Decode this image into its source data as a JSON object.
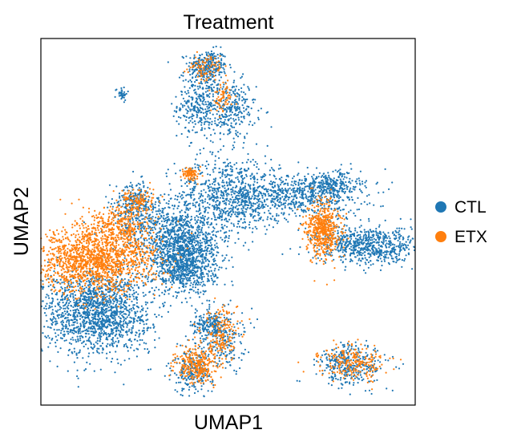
{
  "chart_data": {
    "type": "scatter",
    "title": "Treatment",
    "xlabel": "UMAP1",
    "ylabel": "UMAP2",
    "xlim": [
      0,
      100
    ],
    "ylim": [
      0,
      100
    ],
    "xticks": [],
    "yticks": [],
    "grid": false,
    "legend_position": "right",
    "series": [
      {
        "name": "CTL",
        "color": "#1f77b4",
        "clusters": [
          {
            "cx": 44.5,
            "cy": 92.5,
            "sx": 2.6,
            "sy": 2.2,
            "n": 260
          },
          {
            "cx": 42.5,
            "cy": 82.0,
            "sx": 3.0,
            "sy": 4.5,
            "n": 320
          },
          {
            "cx": 51.0,
            "cy": 80.5,
            "sx": 3.2,
            "sy": 4.0,
            "n": 260
          },
          {
            "cx": 21.5,
            "cy": 85.0,
            "sx": 0.8,
            "sy": 0.9,
            "n": 35
          },
          {
            "cx": 50.0,
            "cy": 57.0,
            "sx": 7.0,
            "sy": 5.5,
            "n": 780
          },
          {
            "cx": 68.0,
            "cy": 57.0,
            "sx": 9.0,
            "sy": 3.2,
            "n": 620
          },
          {
            "cx": 77.5,
            "cy": 60.0,
            "sx": 4.0,
            "sy": 2.0,
            "n": 260
          },
          {
            "cx": 38.0,
            "cy": 42.5,
            "sx": 5.0,
            "sy": 4.2,
            "n": 900
          },
          {
            "cx": 38.5,
            "cy": 36.5,
            "sx": 4.2,
            "sy": 3.2,
            "n": 420
          },
          {
            "cx": 30.0,
            "cy": 49.0,
            "sx": 6.0,
            "sy": 3.5,
            "n": 360
          },
          {
            "cx": 25.0,
            "cy": 56.0,
            "sx": 2.6,
            "sy": 2.5,
            "n": 200
          },
          {
            "cx": 15.0,
            "cy": 25.5,
            "sx": 7.2,
            "sy": 5.8,
            "n": 1600
          },
          {
            "cx": 87.5,
            "cy": 43.5,
            "sx": 7.0,
            "sy": 2.6,
            "n": 700
          },
          {
            "cx": 45.0,
            "cy": 22.0,
            "sx": 2.3,
            "sy": 1.6,
            "n": 170
          },
          {
            "cx": 48.5,
            "cy": 18.5,
            "sx": 3.0,
            "sy": 4.5,
            "n": 220
          },
          {
            "cx": 40.5,
            "cy": 9.5,
            "sx": 2.6,
            "sy": 3.2,
            "n": 230
          },
          {
            "cx": 83.0,
            "cy": 11.0,
            "sx": 4.5,
            "sy": 2.8,
            "n": 340
          }
        ]
      },
      {
        "name": "ETX",
        "color": "#ff7f0e",
        "clusters": [
          {
            "cx": 14.5,
            "cy": 39.5,
            "sx": 8.0,
            "sy": 4.3,
            "n": 1500
          },
          {
            "cx": 21.0,
            "cy": 49.0,
            "sx": 4.5,
            "sy": 3.0,
            "n": 320
          },
          {
            "cx": 26.0,
            "cy": 55.5,
            "sx": 2.2,
            "sy": 2.0,
            "n": 120
          },
          {
            "cx": 75.5,
            "cy": 48.0,
            "sx": 2.2,
            "sy": 3.8,
            "n": 520
          },
          {
            "cx": 40.0,
            "cy": 63.0,
            "sx": 1.2,
            "sy": 0.9,
            "n": 90
          },
          {
            "cx": 44.0,
            "cy": 92.0,
            "sx": 2.2,
            "sy": 1.8,
            "n": 90
          },
          {
            "cx": 49.0,
            "cy": 84.0,
            "sx": 1.4,
            "sy": 2.0,
            "n": 70
          },
          {
            "cx": 41.5,
            "cy": 11.0,
            "sx": 2.8,
            "sy": 2.5,
            "n": 300
          },
          {
            "cx": 48.5,
            "cy": 19.5,
            "sx": 2.6,
            "sy": 3.5,
            "n": 170
          },
          {
            "cx": 83.5,
            "cy": 11.5,
            "sx": 4.2,
            "sy": 2.3,
            "n": 230
          }
        ]
      }
    ]
  }
}
